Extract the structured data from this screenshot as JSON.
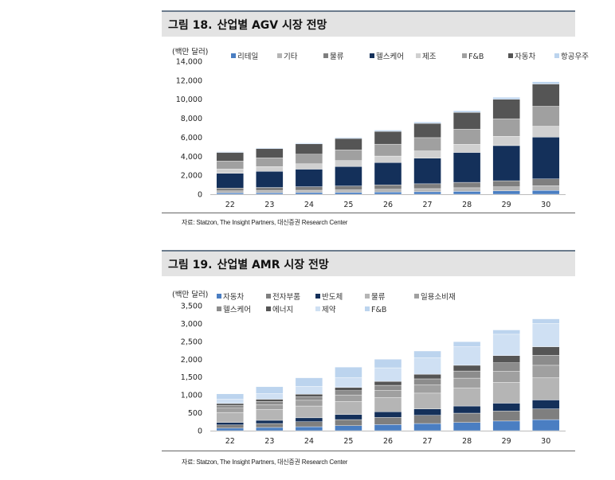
{
  "figures": [
    {
      "label": "그림 18.",
      "title": "산업별 AGV 시장 전망",
      "source": "자료: Statzon, The Insight Partners, 대신증권 Research Center"
    },
    {
      "label": "그림 19.",
      "title": "산업별 AMR 시장 전망",
      "source": "자료: Statzon, The Insight Partners, 대신증권 Research Center"
    }
  ],
  "chart_data": [
    {
      "type": "bar",
      "stacked": true,
      "title": "산업별 AGV 시장 전망",
      "ylabel": "(백만 달러)",
      "ylim": [
        0,
        14000
      ],
      "yticks": [
        0,
        2000,
        4000,
        6000,
        8000,
        10000,
        12000,
        14000
      ],
      "ytick_labels": [
        "0",
        "2,000",
        "4,000",
        "6,000",
        "8,000",
        "10,000",
        "12,000",
        "14,000"
      ],
      "categories": [
        "22",
        "23",
        "24",
        "25",
        "26",
        "27",
        "28",
        "29",
        "30"
      ],
      "legend_position": "top",
      "series": [
        {
          "name": "리테일",
          "color": "#4a7ec2",
          "values": [
            150,
            160,
            180,
            200,
            230,
            260,
            300,
            350,
            400
          ]
        },
        {
          "name": "기타",
          "color": "#b5b5b5",
          "values": [
            200,
            220,
            240,
            260,
            300,
            330,
            380,
            430,
            490
          ]
        },
        {
          "name": "물류",
          "color": "#7f7f7f",
          "values": [
            300,
            330,
            370,
            410,
            460,
            510,
            570,
            640,
            720
          ]
        },
        {
          "name": "헬스케어",
          "color": "#14305a",
          "values": [
            1550,
            1700,
            1850,
            2050,
            2350,
            2700,
            3150,
            3700,
            4400
          ]
        },
        {
          "name": "제조",
          "color": "#d0d0d0",
          "values": [
            450,
            500,
            560,
            620,
            680,
            760,
            860,
            980,
            1150
          ]
        },
        {
          "name": "F&B",
          "color": "#a0a0a0",
          "values": [
            850,
            930,
            1020,
            1130,
            1250,
            1400,
            1600,
            1850,
            2100
          ]
        },
        {
          "name": "자동차",
          "color": "#555555",
          "values": [
            900,
            960,
            1080,
            1200,
            1350,
            1500,
            1750,
            2050,
            2350
          ]
        },
        {
          "name": "항공우주",
          "color": "#bcd4ee",
          "values": [
            80,
            90,
            100,
            110,
            130,
            150,
            180,
            210,
            240
          ]
        }
      ]
    },
    {
      "type": "bar",
      "stacked": true,
      "title": "산업별 AMR 시장 전망",
      "ylabel": "(백만 달러)",
      "ylim": [
        0,
        3500
      ],
      "yticks": [
        0,
        500,
        1000,
        1500,
        2000,
        2500,
        3000,
        3500
      ],
      "ytick_labels": [
        "0",
        "500",
        "1,000",
        "1,500",
        "2,000",
        "2,500",
        "3,000",
        "3,500"
      ],
      "categories": [
        "22",
        "23",
        "24",
        "25",
        "26",
        "27",
        "28",
        "29",
        "30"
      ],
      "legend_position": "top",
      "series": [
        {
          "name": "자동차",
          "color": "#4a7ec2",
          "values": [
            70,
            90,
            110,
            140,
            170,
            200,
            230,
            270,
            310
          ]
        },
        {
          "name": "전자부품",
          "color": "#7f7f7f",
          "values": [
            90,
            110,
            140,
            170,
            200,
            230,
            260,
            280,
            300
          ]
        },
        {
          "name": "반도체",
          "color": "#14305a",
          "values": [
            70,
            90,
            110,
            140,
            160,
            180,
            200,
            220,
            250
          ]
        },
        {
          "name": "물류",
          "color": "#b5b5b5",
          "values": [
            280,
            300,
            330,
            370,
            400,
            440,
            510,
            580,
            620
          ]
        },
        {
          "name": "일용소비재",
          "color": "#a0a0a0",
          "values": [
            120,
            140,
            160,
            180,
            200,
            230,
            270,
            310,
            350
          ]
        },
        {
          "name": "헬스케어",
          "color": "#8c8c8c",
          "values": [
            80,
            90,
            100,
            120,
            140,
            170,
            200,
            240,
            280
          ]
        },
        {
          "name": "에너지",
          "color": "#555555",
          "values": [
            50,
            60,
            70,
            90,
            110,
            130,
            160,
            200,
            240
          ]
        },
        {
          "name": "제약",
          "color": "#cfe0f3",
          "values": [
            120,
            160,
            220,
            280,
            380,
            460,
            520,
            600,
            650
          ]
        },
        {
          "name": "F&B",
          "color": "#bcd4ee",
          "values": [
            150,
            190,
            240,
            290,
            240,
            190,
            140,
            120,
            130
          ]
        }
      ]
    }
  ]
}
